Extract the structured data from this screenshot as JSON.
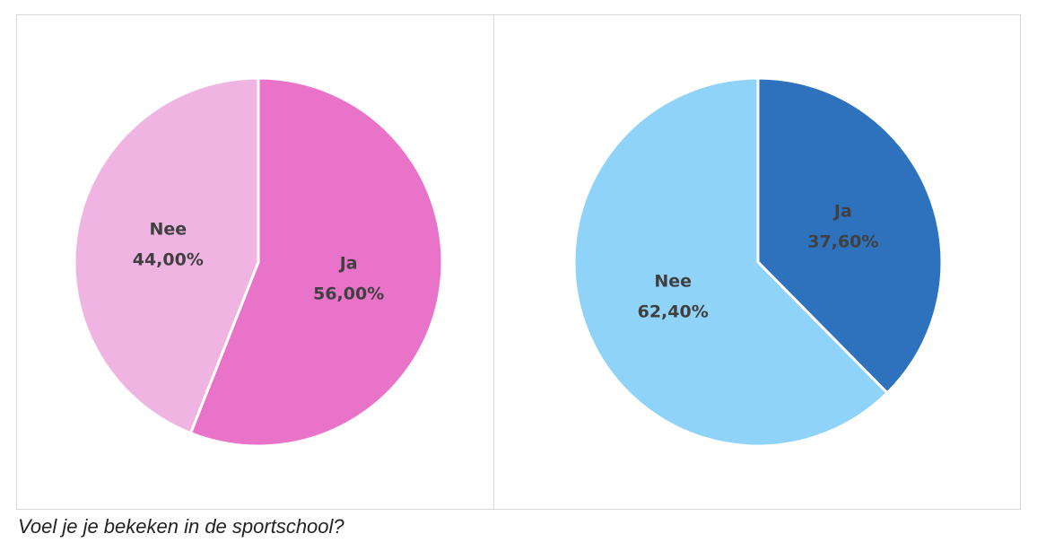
{
  "chart_data": [
    {
      "type": "pie",
      "categories": [
        "Ja",
        "Nee"
      ],
      "values": [
        56,
        44
      ],
      "value_labels": [
        "56,00%",
        "44,00%"
      ],
      "colors": [
        "#e873c8",
        "#f0b4e2"
      ]
    },
    {
      "type": "pie",
      "categories": [
        "Ja",
        "Nee"
      ],
      "values": [
        37.6,
        62.4
      ],
      "value_labels": [
        "37,60%",
        "62,40%"
      ],
      "colors": [
        "#2e72bd",
        "#8fd4f8"
      ]
    }
  ],
  "caption": "Voel je je bekeken in de sportschool?"
}
